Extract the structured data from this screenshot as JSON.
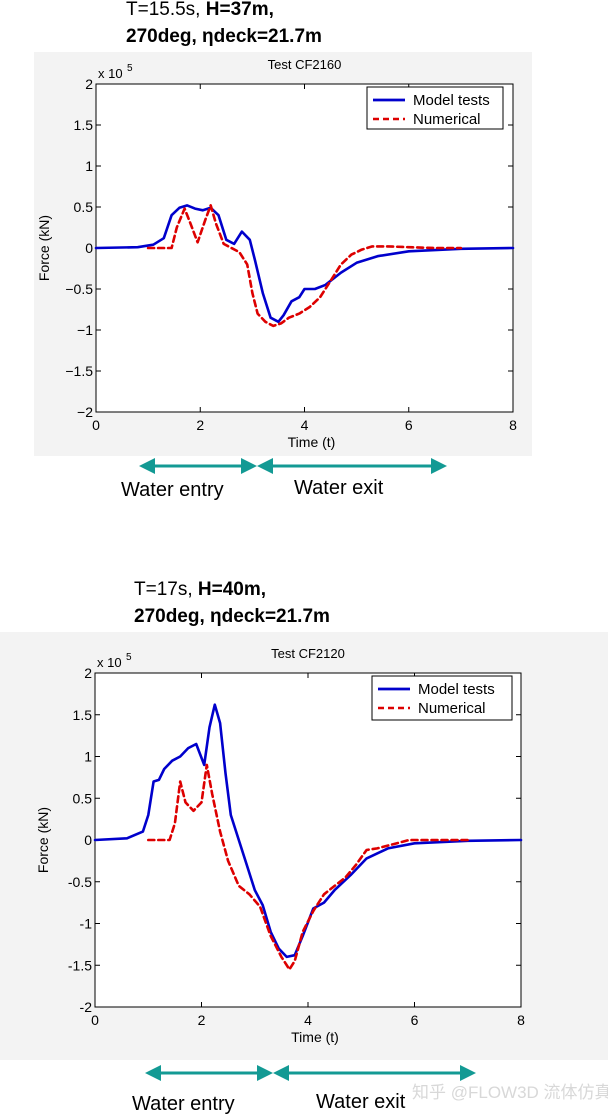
{
  "charts": [
    {
      "caption_line1_plain": "T=15.5s, ",
      "caption_line1_bold": "H=37m,",
      "caption_line2_bold": "270deg, ηdeck=21.7m",
      "title": "Test CF2160",
      "multiplier": "x 10",
      "multiplier_exp": "5",
      "legend": [
        "Model tests",
        "Numerical"
      ],
      "xticks": [
        "0",
        "2",
        "4",
        "6",
        "8"
      ],
      "yticks": [
        "2",
        "1.5",
        "1",
        "0.5",
        "0",
        "−0.5",
        "−1",
        "−1.5",
        "−2"
      ],
      "arrow_labels": [
        "Water entry",
        "Water exit"
      ]
    },
    {
      "caption_line1_plain": "T=17s, ",
      "caption_line1_bold": "H=40m,",
      "caption_line2_bold": "270deg, ηdeck=21.7m",
      "title": "Test CF2120",
      "multiplier": "x 10",
      "multiplier_exp": "5",
      "legend": [
        "Model tests",
        "Numerical"
      ],
      "xticks": [
        "0",
        "2",
        "4",
        "6",
        "8"
      ],
      "yticks": [
        "2",
        "1.5",
        "1",
        "0.5",
        "0",
        "-0.5",
        "-1",
        "-1.5",
        "-2"
      ],
      "arrow_labels": [
        "Water entry",
        "Water exit"
      ]
    }
  ],
  "watermark": "知乎 @FLOW3D 流体仿真",
  "colors": {
    "model": "#0000cc",
    "numerical": "#dd0000",
    "arrow": "#139a94"
  },
  "chart_data": [
    {
      "type": "line",
      "title": "Test CF2160",
      "xlabel": "Time (t)",
      "ylabel": "Force (kN)",
      "y_multiplier": "x 10^5",
      "xlim": [
        0,
        8
      ],
      "ylim": [
        -2,
        2
      ],
      "legend_position": "top-right",
      "series": [
        {
          "name": "Model tests",
          "style": "solid",
          "x": [
            0,
            0.8,
            1.1,
            1.3,
            1.45,
            1.6,
            1.75,
            1.9,
            2.05,
            2.2,
            2.35,
            2.5,
            2.65,
            2.8,
            2.95,
            3.05,
            3.2,
            3.35,
            3.5,
            3.6,
            3.75,
            3.9,
            4.0,
            4.2,
            4.4,
            4.7,
            5.0,
            5.4,
            6.0,
            7.0,
            8.0
          ],
          "y": [
            0,
            0.01,
            0.04,
            0.12,
            0.4,
            0.49,
            0.52,
            0.48,
            0.46,
            0.49,
            0.4,
            0.1,
            0.05,
            0.2,
            0.1,
            -0.15,
            -0.55,
            -0.85,
            -0.9,
            -0.82,
            -0.65,
            -0.6,
            -0.5,
            -0.5,
            -0.45,
            -0.3,
            -0.18,
            -0.1,
            -0.04,
            -0.01,
            0
          ]
        },
        {
          "name": "Numerical",
          "style": "dashed",
          "x": [
            1.0,
            1.45,
            1.55,
            1.7,
            1.8,
            1.95,
            2.1,
            2.2,
            2.3,
            2.45,
            2.6,
            2.75,
            2.9,
            3.0,
            3.1,
            3.25,
            3.4,
            3.55,
            3.7,
            3.9,
            4.1,
            4.3,
            4.5,
            4.7,
            4.9,
            5.1,
            5.3,
            5.6,
            6.0,
            6.5,
            7.0
          ],
          "y": [
            0,
            0,
            0.25,
            0.48,
            0.32,
            0.07,
            0.35,
            0.52,
            0.3,
            0.05,
            0.0,
            -0.05,
            -0.2,
            -0.55,
            -0.8,
            -0.9,
            -0.95,
            -0.92,
            -0.85,
            -0.8,
            -0.72,
            -0.6,
            -0.4,
            -0.2,
            -0.08,
            -0.02,
            0.02,
            0.02,
            0.01,
            0,
            0
          ]
        }
      ]
    },
    {
      "type": "line",
      "title": "Test CF2120",
      "xlabel": "Time (t)",
      "ylabel": "Force (kN)",
      "y_multiplier": "x 10^5",
      "xlim": [
        0,
        8
      ],
      "ylim": [
        -2,
        2
      ],
      "legend_position": "top-right",
      "series": [
        {
          "name": "Model tests",
          "style": "solid",
          "x": [
            0,
            0.6,
            0.9,
            1.0,
            1.1,
            1.2,
            1.3,
            1.45,
            1.6,
            1.75,
            1.9,
            2.05,
            2.15,
            2.25,
            2.35,
            2.45,
            2.55,
            2.7,
            2.85,
            3.0,
            3.15,
            3.3,
            3.45,
            3.6,
            3.75,
            3.9,
            4.1,
            4.3,
            4.5,
            4.8,
            5.1,
            5.5,
            6.0,
            7.0,
            8.0
          ],
          "y": [
            0,
            0.02,
            0.1,
            0.3,
            0.7,
            0.72,
            0.85,
            0.95,
            1.0,
            1.1,
            1.15,
            0.9,
            1.35,
            1.62,
            1.4,
            0.8,
            0.3,
            0.0,
            -0.3,
            -0.6,
            -0.78,
            -1.1,
            -1.3,
            -1.4,
            -1.38,
            -1.15,
            -0.82,
            -0.75,
            -0.6,
            -0.42,
            -0.22,
            -0.1,
            -0.04,
            -0.01,
            0
          ]
        },
        {
          "name": "Numerical",
          "style": "dashed",
          "x": [
            1.0,
            1.4,
            1.5,
            1.6,
            1.7,
            1.85,
            2.0,
            2.1,
            2.2,
            2.35,
            2.5,
            2.7,
            2.9,
            3.1,
            3.3,
            3.5,
            3.65,
            3.75,
            3.9,
            4.1,
            4.3,
            4.5,
            4.7,
            4.9,
            5.1,
            5.3,
            5.6,
            5.9,
            6.3,
            7.0
          ],
          "y": [
            0,
            0,
            0.2,
            0.7,
            0.45,
            0.35,
            0.45,
            0.9,
            0.55,
            0.1,
            -0.25,
            -0.55,
            -0.65,
            -0.8,
            -1.15,
            -1.4,
            -1.55,
            -1.45,
            -1.1,
            -0.85,
            -0.65,
            -0.55,
            -0.45,
            -0.3,
            -0.12,
            -0.1,
            -0.05,
            0.0,
            0.0,
            0.0
          ]
        }
      ]
    }
  ]
}
